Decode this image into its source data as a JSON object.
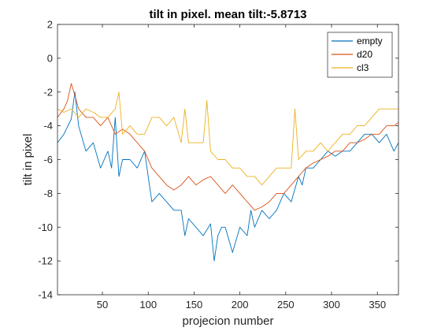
{
  "chart_data": {
    "type": "line",
    "title": "tilt in pixel. mean tilt:-5.8713",
    "xlabel": "projecion number",
    "ylabel": "tilt in pixel",
    "xlim": [
      1,
      373
    ],
    "ylim": [
      -14,
      2
    ],
    "xticks": [
      50,
      100,
      150,
      200,
      250,
      300,
      350
    ],
    "yticks": [
      -14,
      -12,
      -10,
      -8,
      -6,
      -4,
      -2,
      0,
      2
    ],
    "grid": false,
    "legend_position": "top-right",
    "series": [
      {
        "name": "empty",
        "color": "#0072BD",
        "x": [
          1,
          8,
          16,
          20,
          24,
          32,
          40,
          48,
          56,
          60,
          64,
          68,
          72,
          80,
          88,
          96,
          100,
          104,
          112,
          120,
          128,
          136,
          140,
          144,
          152,
          160,
          168,
          172,
          176,
          180,
          184,
          192,
          200,
          208,
          212,
          216,
          224,
          232,
          240,
          248,
          256,
          264,
          268,
          272,
          280,
          288,
          296,
          304,
          312,
          320,
          328,
          336,
          344,
          352,
          360,
          368,
          373
        ],
        "y": [
          -5.0,
          -4.5,
          -3.6,
          -2.0,
          -4.0,
          -5.5,
          -5.0,
          -6.5,
          -5.5,
          -6.5,
          -3.5,
          -7.0,
          -6.0,
          -6.0,
          -6.5,
          -5.5,
          -7.0,
          -8.5,
          -8.0,
          -8.5,
          -9.0,
          -9.0,
          -10.5,
          -9.5,
          -10.0,
          -10.5,
          -9.8,
          -12.0,
          -10.5,
          -10.0,
          -10.0,
          -11.5,
          -10.0,
          -10.5,
          -9.0,
          -10.0,
          -9.0,
          -9.5,
          -9.0,
          -8.0,
          -8.5,
          -7.0,
          -7.5,
          -6.5,
          -6.5,
          -6.0,
          -5.5,
          -5.8,
          -5.5,
          -5.5,
          -5.0,
          -4.5,
          -4.5,
          -5.0,
          -4.5,
          -5.5,
          -5.0
        ]
      },
      {
        "name": "d20",
        "color": "#D95319",
        "x": [
          1,
          8,
          12,
          16,
          20,
          24,
          32,
          40,
          48,
          56,
          64,
          72,
          80,
          88,
          96,
          104,
          112,
          120,
          128,
          136,
          144,
          152,
          160,
          168,
          176,
          184,
          192,
          200,
          208,
          216,
          224,
          232,
          240,
          248,
          256,
          264,
          272,
          280,
          288,
          296,
          304,
          312,
          320,
          328,
          336,
          344,
          352,
          360,
          368,
          373
        ],
        "y": [
          -3.5,
          -3.0,
          -2.5,
          -1.5,
          -2.2,
          -3.0,
          -3.5,
          -3.5,
          -4.0,
          -3.5,
          -4.5,
          -4.2,
          -4.5,
          -5.0,
          -5.5,
          -6.5,
          -7.0,
          -7.5,
          -7.8,
          -7.5,
          -7.0,
          -7.5,
          -7.2,
          -7.0,
          -7.5,
          -8.0,
          -7.5,
          -8.0,
          -8.5,
          -9.0,
          -8.8,
          -8.5,
          -8.0,
          -8.0,
          -7.5,
          -7.0,
          -6.5,
          -6.2,
          -6.0,
          -5.8,
          -5.5,
          -5.5,
          -5.0,
          -5.0,
          -4.8,
          -4.5,
          -4.5,
          -4.0,
          -4.0,
          -3.8
        ]
      },
      {
        "name": "cl3",
        "color": "#EDB120",
        "x": [
          1,
          8,
          16,
          24,
          32,
          40,
          48,
          56,
          64,
          68,
          72,
          80,
          88,
          96,
          104,
          112,
          120,
          128,
          136,
          140,
          144,
          152,
          160,
          164,
          168,
          176,
          184,
          192,
          200,
          208,
          216,
          224,
          232,
          240,
          248,
          256,
          260,
          264,
          272,
          280,
          288,
          296,
          304,
          312,
          320,
          328,
          336,
          344,
          352,
          360,
          368,
          373
        ],
        "y": [
          -3.0,
          -3.2,
          -3.0,
          -3.5,
          -3.0,
          -3.2,
          -3.5,
          -3.5,
          -3.0,
          -2.0,
          -4.5,
          -4.0,
          -4.5,
          -4.5,
          -3.5,
          -3.5,
          -4.0,
          -3.5,
          -5.0,
          -3.0,
          -5.0,
          -5.0,
          -5.0,
          -2.5,
          -5.5,
          -6.0,
          -6.0,
          -6.5,
          -6.5,
          -7.0,
          -7.0,
          -7.5,
          -7.0,
          -6.5,
          -6.5,
          -6.5,
          -3.0,
          -6.0,
          -5.5,
          -5.5,
          -5.0,
          -5.5,
          -5.0,
          -4.5,
          -4.5,
          -4.0,
          -4.0,
          -3.5,
          -3.0,
          -3.0,
          -3.0,
          -3.0
        ]
      }
    ]
  }
}
